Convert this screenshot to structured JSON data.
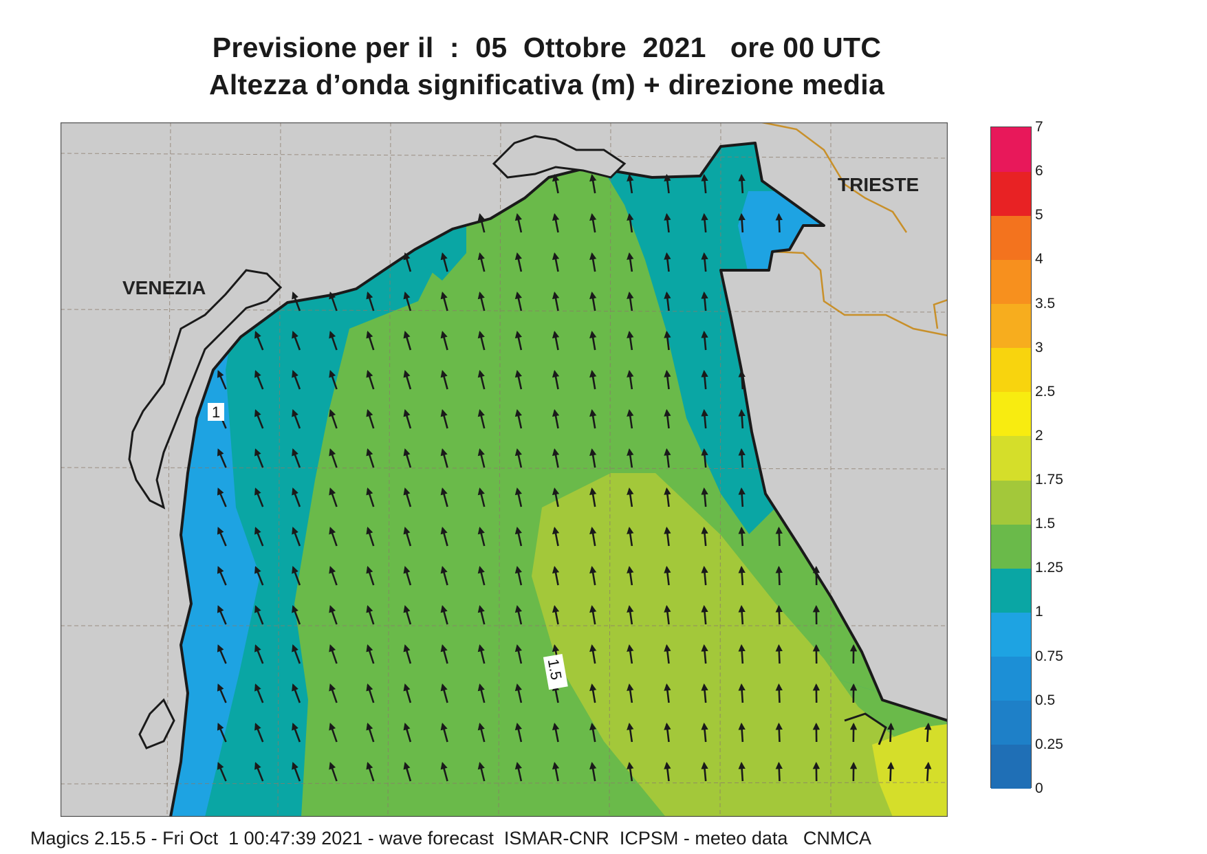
{
  "title": {
    "line1": "Previsione per il  :  05  Ottobre  2021   ore 00 UTC",
    "line2": "Altezza d’onda significativa (m) + direzione media"
  },
  "map": {
    "cities": [
      {
        "name": "VENEZIA"
      },
      {
        "name": "TRIESTE"
      }
    ],
    "contour_labels": [
      "1",
      "1.5"
    ],
    "wave_direction": "north-northwest",
    "colors": {
      "land": "#cccccc",
      "coastline": "#1a1a1a",
      "border": "#c8902a",
      "arrow": "#1a1a1a"
    }
  },
  "legend": {
    "ticks": [
      "0",
      "0.25",
      "0.5",
      "0.75",
      "1",
      "1.25",
      "1.5",
      "1.75",
      "2",
      "2.5",
      "3",
      "3.5",
      "4",
      "5",
      "6",
      "7"
    ],
    "colors": [
      "#1f6fb6",
      "#1e80c8",
      "#1c8fd6",
      "#1ea3e2",
      "#0aa6a4",
      "#6aba4a",
      "#a3c83a",
      "#d5de2a",
      "#f8ec10",
      "#f8d40e",
      "#f7ad1e",
      "#f7901e",
      "#f3731e",
      "#e82224",
      "#e8185a"
    ]
  },
  "footer": "Magics 2.15.5 - Fri Oct  1 00:47:39 2021 - wave forecast  ISMAR-CNR  ICPSM - meteo data   CNMCA"
}
